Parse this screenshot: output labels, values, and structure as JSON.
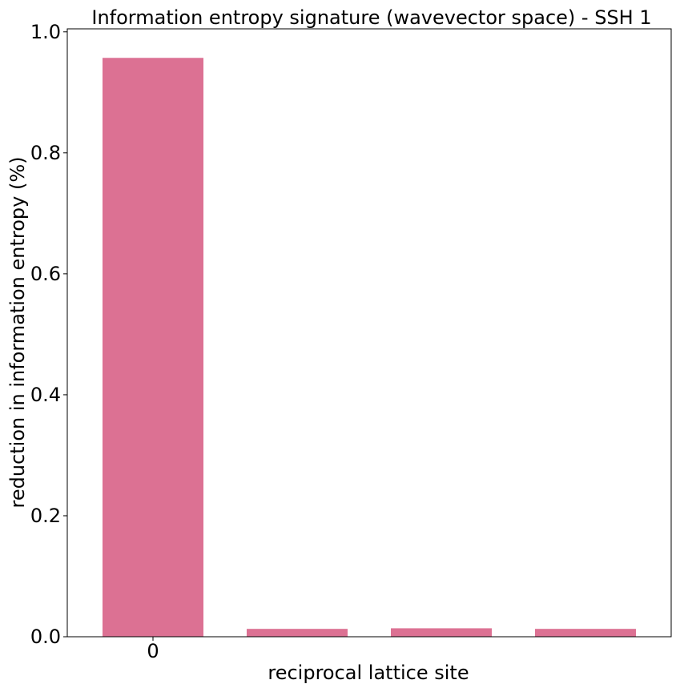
{
  "chart_data": {
    "type": "bar",
    "title": "Information entropy signature (wavevector space) - SSH 1",
    "xlabel": "reciprocal lattice site",
    "ylabel": "reduction in information entropy (%)",
    "categories": [
      "0",
      "",
      "",
      ""
    ],
    "values": [
      0.957,
      0.013,
      0.014,
      0.013
    ],
    "ylim": [
      0,
      1.0
    ],
    "yticks": [
      "0.0",
      "0.2",
      "0.4",
      "0.6",
      "0.8",
      "1.0"
    ],
    "grid": false,
    "bar_color": "#dc7193"
  }
}
